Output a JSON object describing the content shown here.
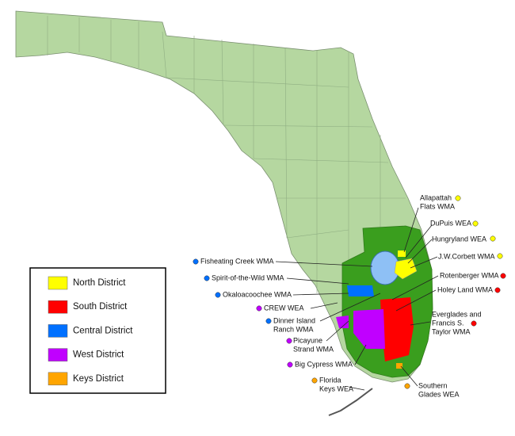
{
  "legend": {
    "items": [
      {
        "name": "North District",
        "color": "#ffff00"
      },
      {
        "name": "South District",
        "color": "#ff0000"
      },
      {
        "name": "Central District",
        "color": "#0070ff"
      },
      {
        "name": "West District",
        "color": "#c000ff"
      },
      {
        "name": "Keys District",
        "color": "#ffa500"
      }
    ]
  },
  "areas": [
    {
      "lines": [
        "Allapattah",
        "Flats WMA"
      ],
      "district": "North District"
    },
    {
      "lines": [
        "DuPuis WEA"
      ],
      "district": "North District"
    },
    {
      "lines": [
        "Hungryland WEA"
      ],
      "district": "North District"
    },
    {
      "lines": [
        "J.W.Corbett WMA"
      ],
      "district": "North District"
    },
    {
      "lines": [
        "Rotenberger WMA"
      ],
      "district": "South District"
    },
    {
      "lines": [
        "Holey Land WMA"
      ],
      "district": "South District"
    },
    {
      "lines": [
        "Everglades and",
        "Francis S.",
        "Taylor WMA"
      ],
      "district": "South District"
    },
    {
      "lines": [
        "Southern",
        "Glades WEA"
      ],
      "district": "Keys District"
    },
    {
      "lines": [
        "Fisheating Creek WMA"
      ],
      "district": "Central District"
    },
    {
      "lines": [
        "Spirit-of-the-Wild WMA"
      ],
      "district": "Central District"
    },
    {
      "lines": [
        "Okaloacoochee WMA"
      ],
      "district": "Central District"
    },
    {
      "lines": [
        "CREW WEA"
      ],
      "district": "West District"
    },
    {
      "lines": [
        "Dinner Island",
        "Ranch WMA"
      ],
      "district": "Central District"
    },
    {
      "lines": [
        "Picayune",
        "Strand WMA"
      ],
      "district": "West District"
    },
    {
      "lines": [
        "Big Cypress WMA"
      ],
      "district": "West District"
    },
    {
      "lines": [
        "Florida",
        "Keys WEA"
      ],
      "district": "Keys District"
    }
  ]
}
